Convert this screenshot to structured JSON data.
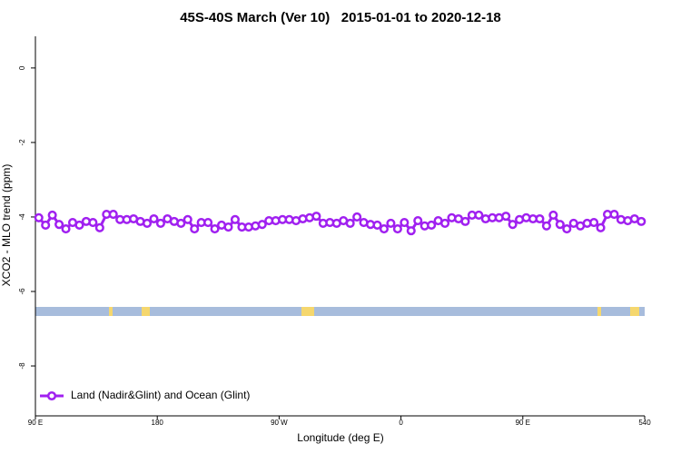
{
  "chart_data": {
    "type": "line",
    "title": "45S-40S March (Ver 10)   2015-01-01 to 2020-12-18",
    "x_label": "Longitude (deg E)",
    "y_label": "XCO2 - MLO trend (ppm)",
    "x": [
      92.5,
      97.5,
      102.5,
      107.5,
      112.5,
      117.5,
      122.5,
      127.5,
      132.5,
      137.5,
      142.5,
      147.5,
      152.5,
      157.5,
      162.5,
      167.5,
      172.5,
      177.5,
      182.5,
      187.5,
      192.5,
      197.5,
      202.5,
      207.5,
      212.5,
      217.5,
      222.5,
      227.5,
      232.5,
      237.5,
      242.5,
      247.5,
      252.5,
      257.5,
      262.5,
      267.5,
      272.5,
      277.5,
      282.5,
      287.5,
      292.5,
      297.5,
      302.5,
      307.5,
      312.5,
      317.5,
      322.5,
      327.5,
      332.5,
      337.5,
      342.5,
      347.5,
      352.5,
      357.5,
      362.5,
      367.5,
      372.5,
      377.5,
      382.5,
      387.5,
      392.5,
      397.5,
      402.5,
      407.5,
      412.5,
      417.5,
      422.5,
      427.5,
      432.5,
      437.5,
      442.5,
      447.5,
      452.5,
      457.5,
      462.5,
      467.5,
      472.5,
      477.5,
      482.5,
      487.5,
      492.5,
      497.5,
      502.5,
      507.5,
      512.5,
      517.5,
      522.5,
      527.5,
      532.5,
      537.5
    ],
    "series": [
      {
        "name": "Land (Nadir&Glint) and Ocean (Glint)",
        "color": "#a020f0",
        "values": [
          -4.02,
          -4.22,
          -3.95,
          -4.2,
          -4.32,
          -4.15,
          -4.22,
          -4.12,
          -4.15,
          -4.29,
          -3.93,
          -3.93,
          -4.07,
          -4.07,
          -4.05,
          -4.12,
          -4.17,
          -4.05,
          -4.17,
          -4.05,
          -4.12,
          -4.17,
          -4.07,
          -4.32,
          -4.15,
          -4.15,
          -4.32,
          -4.22,
          -4.27,
          -4.07,
          -4.27,
          -4.27,
          -4.24,
          -4.2,
          -4.1,
          -4.1,
          -4.07,
          -4.07,
          -4.1,
          -4.05,
          -4.02,
          -3.98,
          -4.17,
          -4.15,
          -4.17,
          -4.1,
          -4.17,
          -4.0,
          -4.15,
          -4.2,
          -4.22,
          -4.32,
          -4.17,
          -4.32,
          -4.15,
          -4.37,
          -4.1,
          -4.24,
          -4.22,
          -4.1,
          -4.17,
          -4.02,
          -4.05,
          -4.12,
          -3.95,
          -3.95,
          -4.05,
          -4.02,
          -4.02,
          -3.98,
          -4.2,
          -4.07,
          -4.02,
          -4.05,
          -4.05,
          -4.24,
          -3.95,
          -4.2,
          -4.32,
          -4.17,
          -4.24,
          -4.17,
          -4.15,
          -4.29,
          -3.93,
          -3.93,
          -4.07,
          -4.1,
          -4.05,
          -4.12
        ]
      }
    ],
    "xlim": [
      90,
      540
    ],
    "xticks": [
      {
        "value": 90,
        "label": "90 E"
      },
      180,
      {
        "value": 270,
        "label": "90 W"
      },
      {
        "value": 360,
        "label": "0"
      },
      {
        "value": 450,
        "label": "90 E"
      },
      540
    ],
    "ylim": [
      -9.34,
      0.85
    ],
    "yticks": [
      0,
      -2,
      -4,
      -6,
      -8
    ],
    "legend": "bottom-left"
  }
}
